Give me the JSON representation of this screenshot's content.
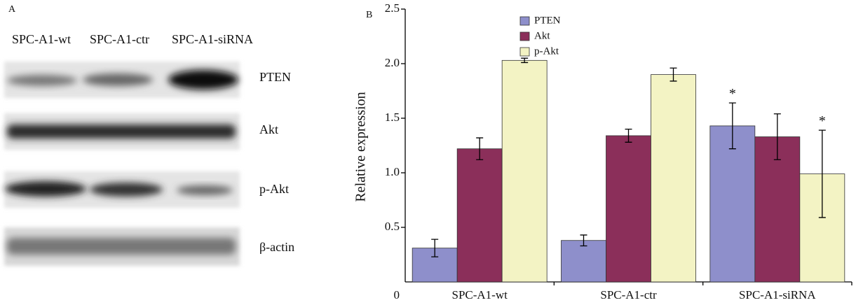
{
  "panel_a": {
    "label": "A",
    "lanes": [
      "SPC-A1-wt",
      "SPC-A1-ctr",
      "SPC-A1-siRNA"
    ],
    "rows": [
      "PTEN",
      "Akt",
      "p-Akt",
      "β-actin"
    ]
  },
  "chart_data": {
    "type": "bar",
    "panel_label": "B",
    "y_label": "Relative expression",
    "categories": [
      "SPC-A1-wt",
      "SPC-A1-ctr",
      "SPC-A1-siRNA"
    ],
    "series": [
      {
        "name": "PTEN",
        "color": "#8e8fcb",
        "values": [
          0.31,
          0.38,
          1.43
        ],
        "errors": [
          0.08,
          0.05,
          0.21
        ]
      },
      {
        "name": "Akt",
        "color": "#8b2f5a",
        "values": [
          1.22,
          1.34,
          1.33
        ],
        "errors": [
          0.1,
          0.06,
          0.21
        ]
      },
      {
        "name": "p-Akt",
        "color": "#f3f3c4",
        "values": [
          2.03,
          1.9,
          0.99
        ],
        "errors": [
          0.02,
          0.06,
          0.4
        ]
      }
    ],
    "annotations": [
      "*",
      "*"
    ],
    "ylim": [
      0,
      2.5
    ],
    "yticks": [
      0,
      0.5,
      {
        "value": 1,
        "label": "1.0"
      },
      1.5,
      {
        "value": 2,
        "label": "2.0"
      },
      2.5
    ]
  }
}
